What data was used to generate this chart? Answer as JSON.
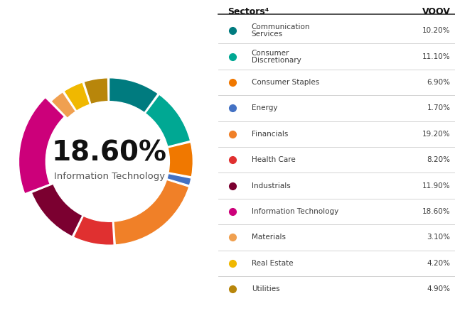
{
  "sectors": [
    {
      "name": "Communication\nServices",
      "value": 10.2,
      "color": "#007B7F"
    },
    {
      "name": "Consumer\nDiscretionary",
      "value": 11.1,
      "color": "#00A893"
    },
    {
      "name": "Consumer Staples",
      "value": 6.9,
      "color": "#F07800"
    },
    {
      "name": "Energy",
      "value": 1.7,
      "color": "#4472C4"
    },
    {
      "name": "Financials",
      "value": 19.2,
      "color": "#F08028"
    },
    {
      "name": "Health Care",
      "value": 8.2,
      "color": "#E03030"
    },
    {
      "name": "Industrials",
      "value": 11.9,
      "color": "#7B0030"
    },
    {
      "name": "Information Technology",
      "value": 18.6,
      "color": "#CC007A"
    },
    {
      "name": "Materials",
      "value": 3.1,
      "color": "#F0A050"
    },
    {
      "name": "Real Estate",
      "value": 4.2,
      "color": "#F0B800"
    },
    {
      "name": "Utilities",
      "value": 4.9,
      "color": "#B8860B"
    }
  ],
  "highlight_sector": "Information Technology",
  "highlight_value": "18.60%",
  "table_header_left": "Sectors⁴",
  "table_header_right": "VOOV"
}
